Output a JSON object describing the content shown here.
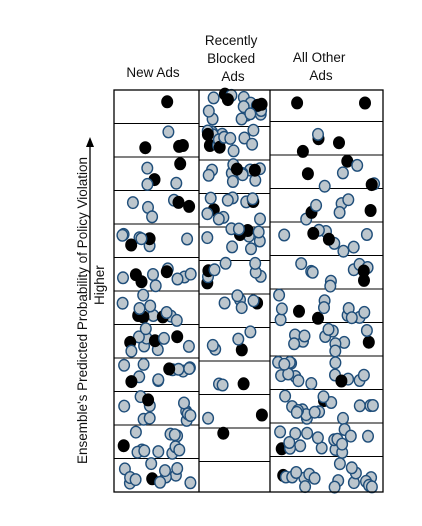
{
  "columns": [
    {
      "lines": [
        "New Ads"
      ]
    },
    {
      "lines": [
        "Recently",
        "Blocked",
        "Ads"
      ]
    },
    {
      "lines": [
        "All Other",
        "Ads"
      ]
    }
  ],
  "y_axis": {
    "label": "Ensemble's Predicted Probability of Policy Violation",
    "direction_label": "Higher"
  },
  "colors": {
    "violating_ad": "#000000",
    "other_ad_fill": "#bcc6cd",
    "dot_outline": "#1f4e7a",
    "grid": "#000000"
  },
  "bins": 12,
  "density": {
    "new_ads": {
      "black": [
        1,
        3,
        2,
        2,
        2,
        3,
        3,
        3,
        2,
        1,
        1,
        1
      ],
      "grey": [
        0,
        1,
        3,
        4,
        6,
        7,
        8,
        8,
        10,
        10,
        11,
        11
      ]
    },
    "recently_blocked_ads": {
      "black": [
        4,
        3,
        2,
        2,
        2,
        2,
        1,
        1,
        1,
        1,
        1,
        0
      ],
      "grey": [
        14,
        12,
        10,
        9,
        8,
        6,
        5,
        4,
        2,
        1,
        0,
        0
      ]
    },
    "all_other_ads": {
      "black": [
        2,
        3,
        3,
        2,
        2,
        2,
        2,
        1,
        1,
        1,
        1,
        1
      ],
      "grey": [
        0,
        1,
        4,
        5,
        7,
        8,
        10,
        12,
        14,
        15,
        16,
        17
      ]
    }
  }
}
